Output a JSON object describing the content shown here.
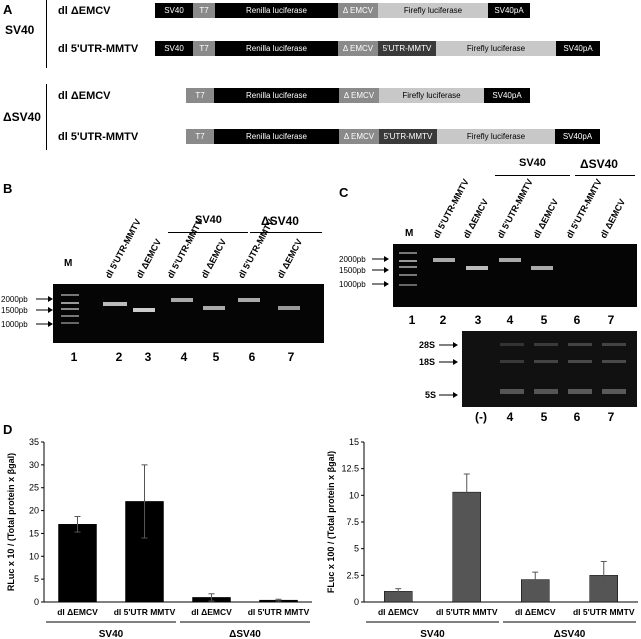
{
  "panelA": {
    "letter": "A",
    "groups": [
      {
        "label": "SV40",
        "constructs": [
          {
            "name": "dl ΔEMCV",
            "segments": [
              "SV40",
              "T7",
              "Renilla luciferase",
              "Δ EMCV",
              "Firefly luciferase",
              "SV40pA"
            ]
          },
          {
            "name": "dl 5'UTR-MMTV",
            "segments": [
              "SV40",
              "T7",
              "Renilla luciferase",
              "Δ EMCV",
              "5'UTR-MMTV",
              "Firefly luciferase",
              "SV40pA"
            ]
          }
        ]
      },
      {
        "label": "ΔSV40",
        "constructs": [
          {
            "name": "dl ΔEMCV",
            "segments": [
              "T7",
              "Renilla luciferase",
              "Δ EMCV",
              "Firefly luciferase",
              "SV40pA"
            ]
          },
          {
            "name": "dl 5'UTR-MMTV",
            "segments": [
              "T7",
              "Renilla luciferase",
              "Δ EMCV",
              "5'UTR-MMTV",
              "Firefly luciferase",
              "SV40pA"
            ]
          }
        ]
      }
    ]
  },
  "panelB": {
    "letter": "B",
    "group_labels": [
      "SV40",
      "ΔSV40"
    ],
    "lanes": [
      "M",
      "dl 5'UTR-MMTV",
      "dl ΔEMCV",
      "dl 5'UTR-MMTV",
      "dl ΔEMCV",
      "dl 5'UTR-MMTV",
      "dl ΔEMCV"
    ],
    "lane_numbers": [
      "1",
      "2",
      "3",
      "4",
      "5",
      "6",
      "7"
    ],
    "markers": [
      "2000pb",
      "1500pb",
      "1000pb"
    ]
  },
  "panelC": {
    "letter": "C",
    "group_labels": [
      "SV40",
      "ΔSV40"
    ],
    "lanes": [
      "M",
      "dl 5'UTR-MMTV",
      "dl ΔEMCV",
      "dl 5'UTR-MMTV",
      "dl ΔEMCV",
      "dl 5'UTR-MMTV",
      "dl ΔEMCV"
    ],
    "lane_numbers": [
      "1",
      "2",
      "3",
      "4",
      "5",
      "6",
      "7"
    ],
    "markers": [
      "2000pb",
      "1500pb",
      "1000pb"
    ],
    "rna_markers": [
      "28S",
      "18S",
      "5S"
    ],
    "rna_lane_numbers": [
      "(-)",
      "4",
      "5",
      "6",
      "7"
    ]
  },
  "panelD": {
    "letter": "D"
  },
  "chart_data": [
    {
      "type": "bar",
      "categories": [
        "dl ΔEMCV",
        "dl 5'UTR MMTV",
        "dl ΔEMCV",
        "dl 5'UTR MMTV"
      ],
      "values": [
        17,
        22,
        1,
        0.4
      ],
      "errors": [
        1.7,
        8,
        0.8,
        0.2
      ],
      "groups": [
        "SV40",
        "ΔSV40"
      ],
      "ylabel": "RLuc x 10 / (Total protein x βgal)",
      "ylim": [
        0,
        35
      ],
      "yticks": [
        "0",
        "5",
        "10",
        "15",
        "20",
        "25",
        "30",
        "35"
      ],
      "color": "#000000"
    },
    {
      "type": "bar",
      "categories": [
        "dl ΔEMCV",
        "dl 5'UTR MMTV",
        "dl ΔEMCV",
        "dl 5'UTR MMTV"
      ],
      "values": [
        1,
        10.3,
        2.1,
        2.5
      ],
      "errors": [
        0.25,
        1.7,
        0.7,
        1.3
      ],
      "groups": [
        "SV40",
        "ΔSV40"
      ],
      "ylabel": "FLuc x 100 / (Total protein x βgal)",
      "ylim": [
        0,
        15
      ],
      "yticks": [
        "0",
        "2.5",
        "5",
        "7.5",
        "10",
        "12.5",
        "15"
      ],
      "color": "#555555"
    }
  ]
}
